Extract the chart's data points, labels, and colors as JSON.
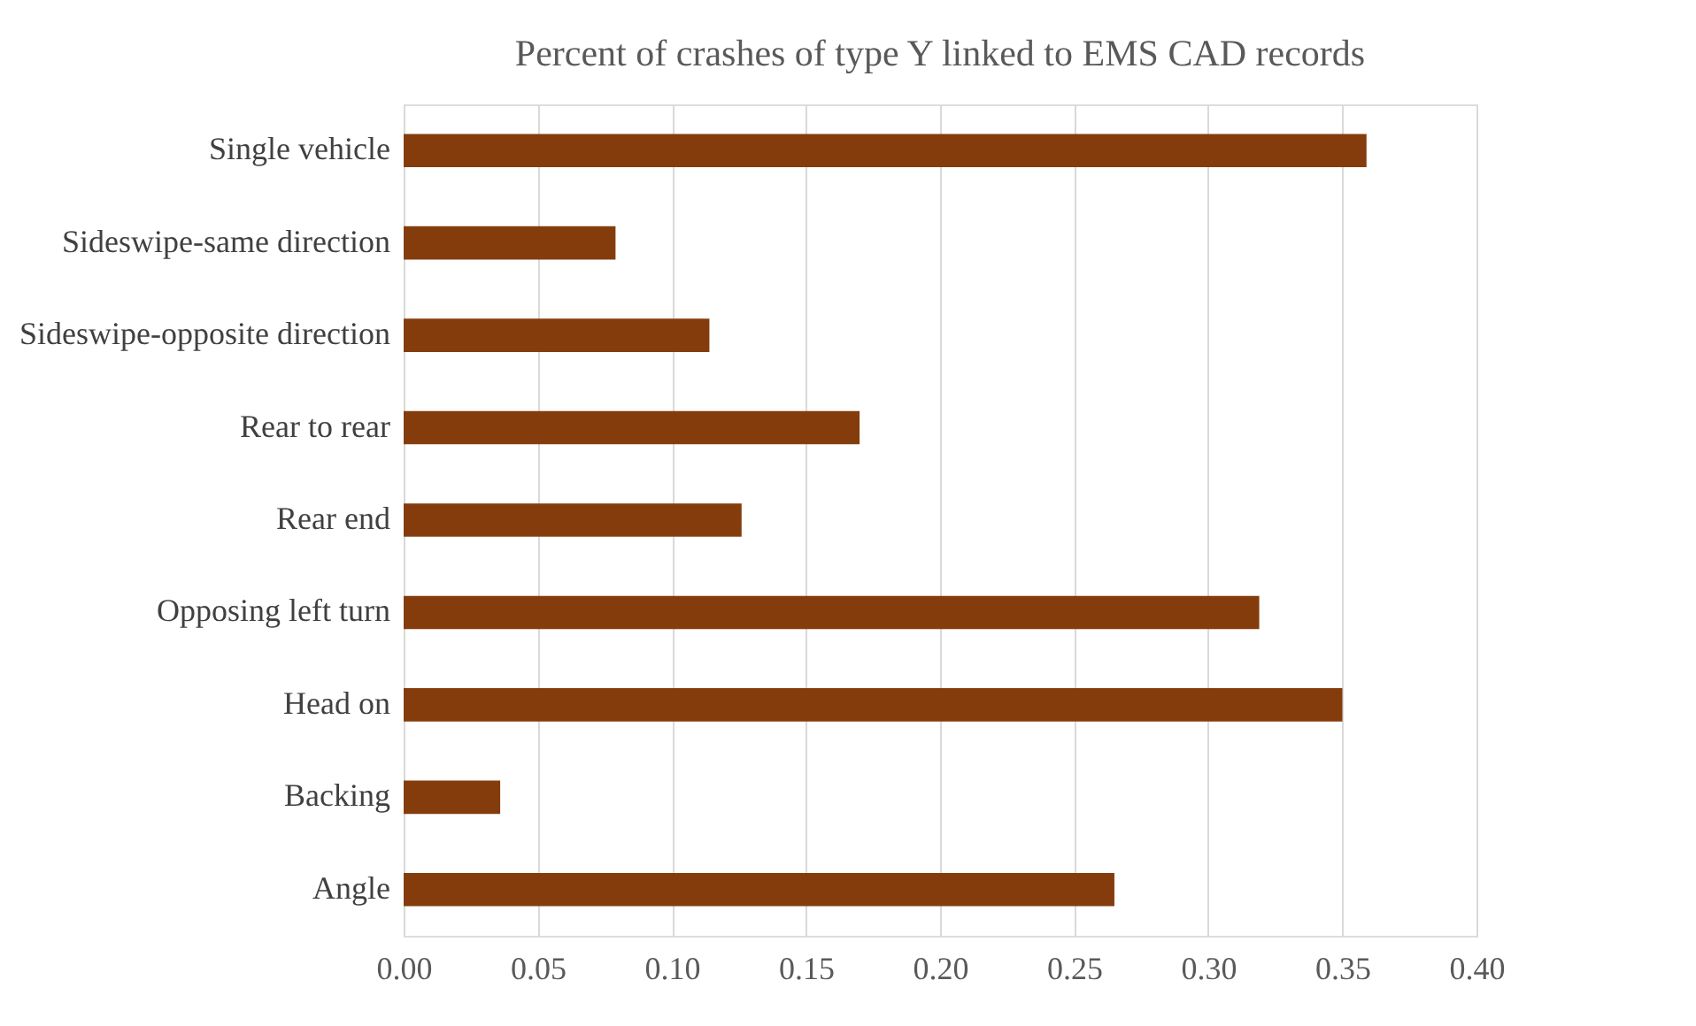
{
  "chart_data": {
    "type": "bar",
    "orientation": "horizontal",
    "title": "Percent of crashes of type Y linked to EMS CAD records",
    "categories": [
      "Single vehicle",
      "Sideswipe-same direction",
      "Sideswipe-opposite direction",
      "Rear to rear",
      "Rear end",
      "Opposing left turn",
      "Head on",
      "Backing",
      "Angle"
    ],
    "values": [
      0.359,
      0.079,
      0.114,
      0.17,
      0.126,
      0.319,
      0.35,
      0.036,
      0.265
    ],
    "color": "#843c0c",
    "xlim": [
      0,
      0.4
    ],
    "xticks": [
      {
        "value": 0,
        "label": "0.00"
      },
      {
        "value": 0.05,
        "label": "0.05"
      },
      {
        "value": 0.1,
        "label": "0.10"
      },
      {
        "value": 0.15,
        "label": "0.15"
      },
      {
        "value": 0.2,
        "label": "0.20"
      },
      {
        "value": 0.25,
        "label": "0.25"
      },
      {
        "value": 0.3,
        "label": "0.30"
      },
      {
        "value": 0.35,
        "label": "0.35"
      },
      {
        "value": 0.4,
        "label": "0.40"
      }
    ],
    "grid": "x"
  }
}
